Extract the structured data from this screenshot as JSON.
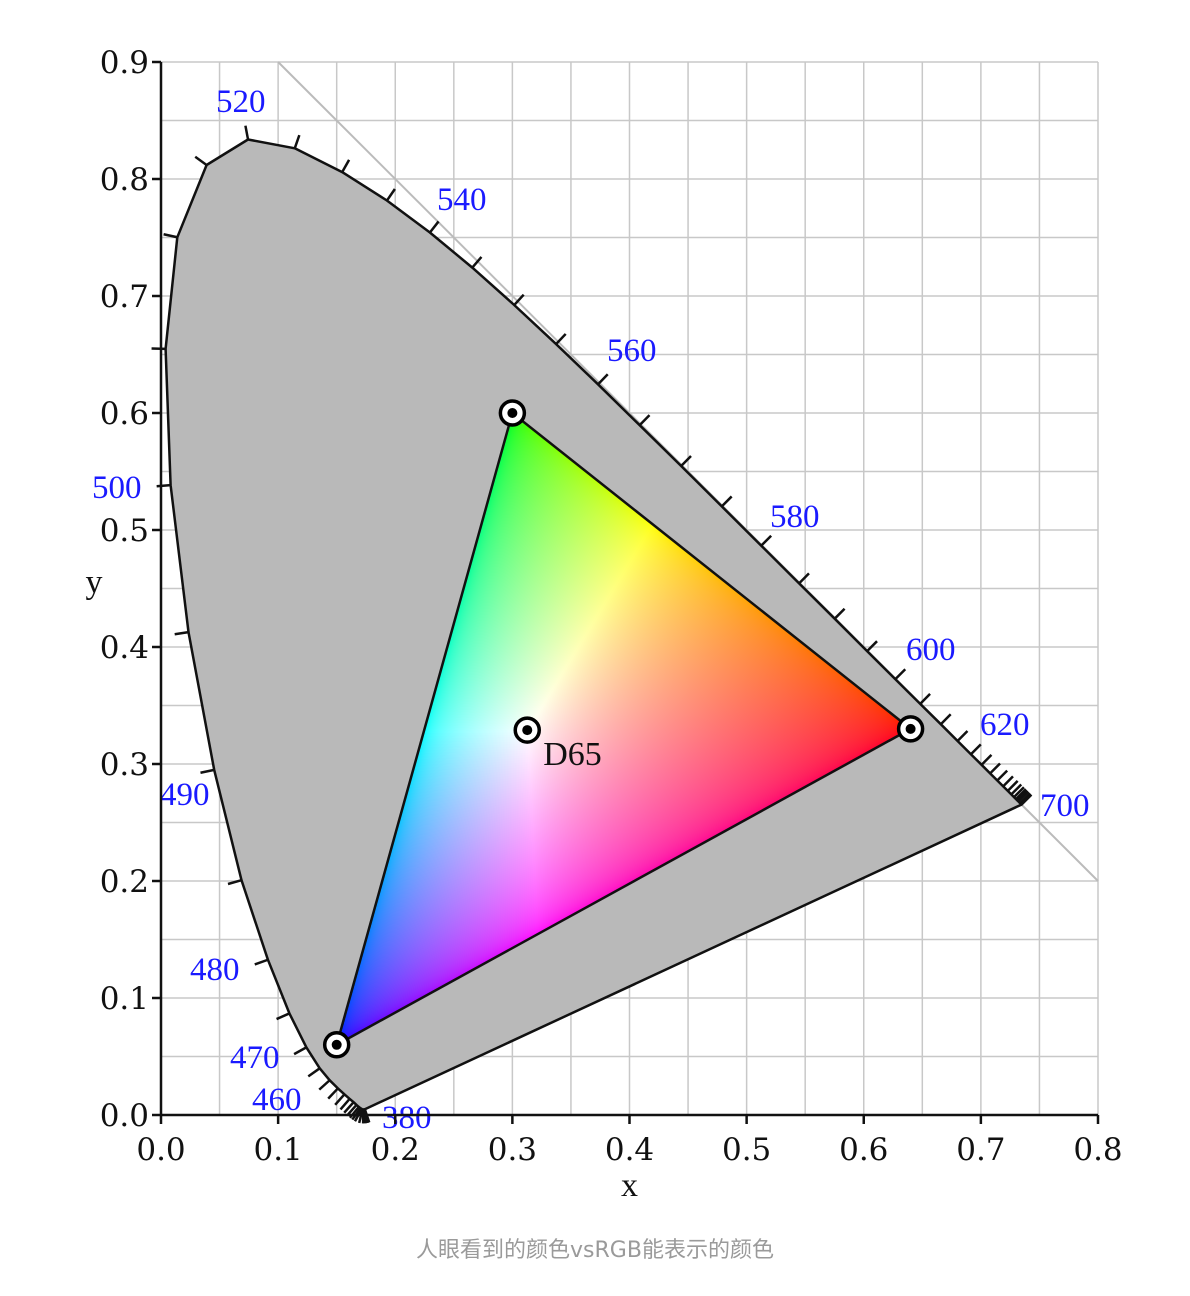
{
  "chart_data": {
    "type": "line",
    "xlabel": "x",
    "ylabel": "y",
    "xlim": [
      0,
      0.8
    ],
    "ylim": [
      0,
      0.9
    ],
    "grid": true,
    "grid_step": 0.05,
    "xticks": [
      "0.0",
      "0.1",
      "0.2",
      "0.3",
      "0.4",
      "0.5",
      "0.6",
      "0.7",
      "0.8"
    ],
    "yticks": [
      "0.0",
      "0.1",
      "0.2",
      "0.3",
      "0.4",
      "0.5",
      "0.6",
      "0.7",
      "0.8",
      "0.9"
    ],
    "colors": {
      "locus_fill": "#b9b9b9",
      "wavelength_label": "#1a1aff",
      "grid": "#c8c8c8"
    },
    "reference_line": {
      "from": [
        0.1,
        0.9
      ],
      "to": [
        0.8,
        0.2
      ]
    },
    "spectral_locus": [
      [
        380,
        0.1741,
        0.005
      ],
      [
        385,
        0.174,
        0.005
      ],
      [
        390,
        0.1738,
        0.0049
      ],
      [
        395,
        0.1736,
        0.0049
      ],
      [
        400,
        0.1733,
        0.0048
      ],
      [
        405,
        0.173,
        0.0048
      ],
      [
        410,
        0.1726,
        0.0048
      ],
      [
        415,
        0.1721,
        0.0048
      ],
      [
        420,
        0.1714,
        0.0051
      ],
      [
        425,
        0.1703,
        0.0058
      ],
      [
        430,
        0.1689,
        0.0069
      ],
      [
        435,
        0.1669,
        0.0086
      ],
      [
        440,
        0.1644,
        0.0109
      ],
      [
        445,
        0.1611,
        0.0138
      ],
      [
        450,
        0.1566,
        0.0177
      ],
      [
        455,
        0.151,
        0.0227
      ],
      [
        460,
        0.144,
        0.0297
      ],
      [
        465,
        0.1355,
        0.0399
      ],
      [
        470,
        0.1241,
        0.0578
      ],
      [
        475,
        0.1096,
        0.0868
      ],
      [
        480,
        0.0913,
        0.1327
      ],
      [
        485,
        0.0687,
        0.2007
      ],
      [
        490,
        0.0454,
        0.295
      ],
      [
        495,
        0.0235,
        0.4127
      ],
      [
        500,
        0.0082,
        0.5384
      ],
      [
        505,
        0.0039,
        0.6548
      ],
      [
        510,
        0.0139,
        0.7502
      ],
      [
        515,
        0.0389,
        0.812
      ],
      [
        520,
        0.0743,
        0.8338
      ],
      [
        525,
        0.1142,
        0.8262
      ],
      [
        530,
        0.1547,
        0.8059
      ],
      [
        535,
        0.1929,
        0.7816
      ],
      [
        540,
        0.2296,
        0.7543
      ],
      [
        545,
        0.2658,
        0.7243
      ],
      [
        550,
        0.3016,
        0.6923
      ],
      [
        555,
        0.3373,
        0.6589
      ],
      [
        560,
        0.3731,
        0.6245
      ],
      [
        565,
        0.4087,
        0.5896
      ],
      [
        570,
        0.4441,
        0.5547
      ],
      [
        575,
        0.4788,
        0.5202
      ],
      [
        580,
        0.5125,
        0.4866
      ],
      [
        585,
        0.5448,
        0.4544
      ],
      [
        590,
        0.5752,
        0.4242
      ],
      [
        595,
        0.6029,
        0.3965
      ],
      [
        600,
        0.627,
        0.3725
      ],
      [
        605,
        0.6482,
        0.3514
      ],
      [
        610,
        0.6658,
        0.334
      ],
      [
        615,
        0.6801,
        0.3197
      ],
      [
        620,
        0.6915,
        0.3083
      ],
      [
        625,
        0.7006,
        0.2993
      ],
      [
        630,
        0.7079,
        0.292
      ],
      [
        635,
        0.714,
        0.2859
      ],
      [
        640,
        0.719,
        0.2809
      ],
      [
        645,
        0.723,
        0.277
      ],
      [
        650,
        0.726,
        0.274
      ],
      [
        655,
        0.7283,
        0.2717
      ],
      [
        660,
        0.73,
        0.27
      ],
      [
        665,
        0.7311,
        0.2689
      ],
      [
        670,
        0.732,
        0.268
      ],
      [
        680,
        0.7334,
        0.2666
      ],
      [
        690,
        0.7344,
        0.2656
      ],
      [
        700,
        0.7347,
        0.2653
      ]
    ],
    "wavelength_labels": [
      "380",
      "460",
      "470",
      "480",
      "490",
      "500",
      "520",
      "540",
      "560",
      "580",
      "600",
      "620",
      "700"
    ],
    "gamut": {
      "red": [
        0.64,
        0.33
      ],
      "green": [
        0.3,
        0.6
      ],
      "blue": [
        0.15,
        0.06
      ]
    },
    "white_point": {
      "label": "D65",
      "x": 0.3127,
      "y": 0.329
    }
  },
  "caption": "人眼看到的颜色vsRGB能表示的颜色"
}
